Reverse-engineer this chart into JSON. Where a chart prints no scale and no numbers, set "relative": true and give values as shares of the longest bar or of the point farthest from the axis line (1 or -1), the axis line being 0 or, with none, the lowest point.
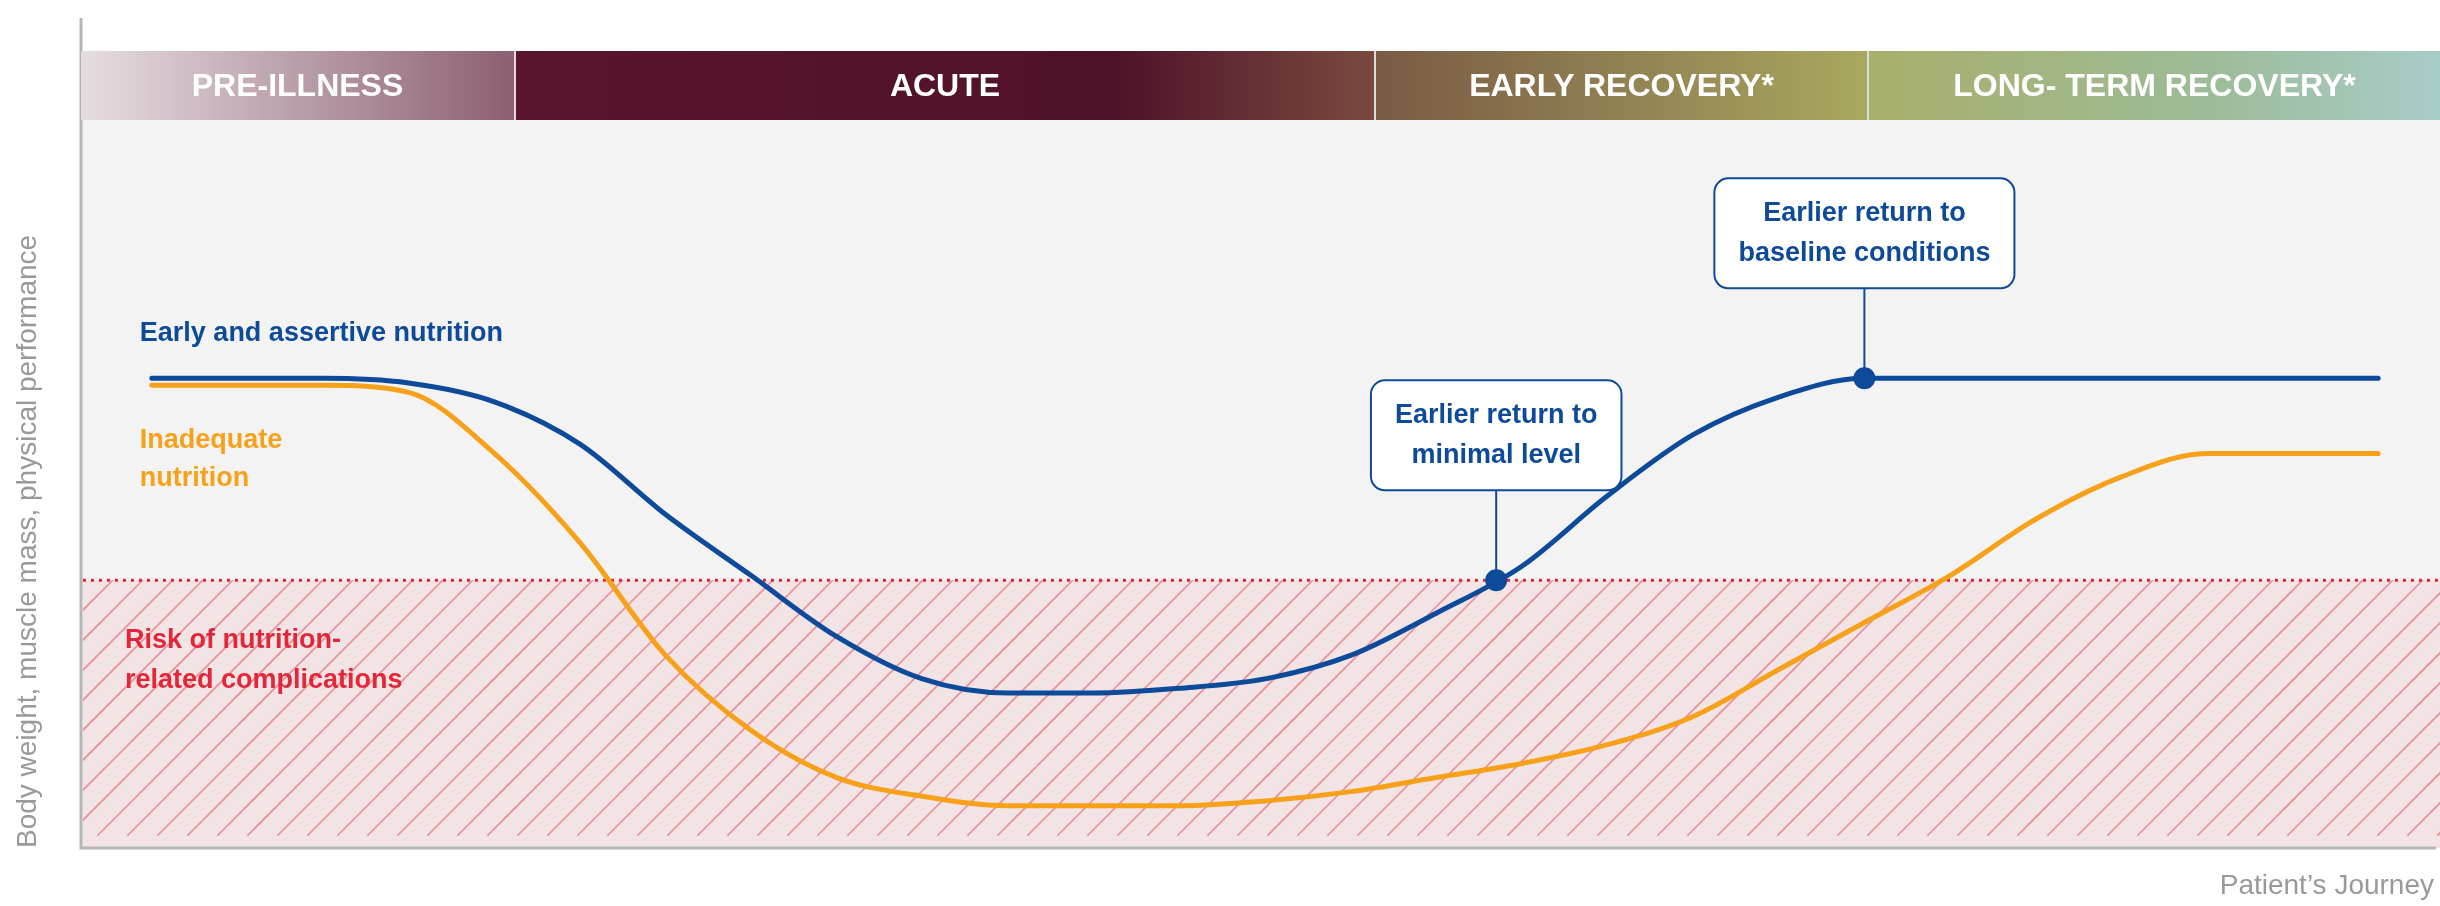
{
  "chart_data": {
    "type": "line",
    "relative": true,
    "xlabel": "Patient’s Journey",
    "ylabel": "Body weight, muscle mass, physical performance",
    "categories": [
      null,
      null,
      null,
      null,
      null,
      null,
      null,
      null,
      null,
      null,
      null,
      null,
      null,
      null,
      null,
      null,
      null,
      null,
      null,
      null,
      null,
      null,
      null,
      null,
      null,
      null,
      null
    ],
    "series": [
      {
        "name": "Early and assertive nutrition",
        "color": "#0d4a9a",
        "values": [
          1,
          1,
          1,
          0.99,
          0.95,
          0.86,
          0.71,
          0.58,
          0.45,
          0.36,
          0.33,
          0.33,
          0.34,
          0.36,
          0.41,
          0.5,
          0.6,
          0.75,
          0.88,
          0.96,
          1,
          1,
          1,
          1,
          1,
          1,
          1
        ]
      },
      {
        "name": "Inadequate nutrition",
        "color": "#f7a11a",
        "values": [
          0.985,
          0.985,
          0.985,
          0.97,
          0.84,
          0.65,
          0.41,
          0.25,
          0.15,
          0.11,
          0.09,
          0.09,
          0.09,
          0.1,
          0.12,
          0.15,
          0.18,
          0.22,
          0.28,
          0.38,
          0.48,
          0.58,
          0.7,
          0.79,
          0.84,
          0.84,
          0.84
        ]
      }
    ],
    "ref_lines": [
      {
        "axis": "y",
        "value": 0.57,
        "color": "#e3263a",
        "line_style": "dotted"
      }
    ],
    "bands": [
      {
        "axis": "y",
        "from": 0,
        "to": 0.57,
        "label": "Risk of nutrition-related complications",
        "color": "#e3263a"
      }
    ],
    "annotations": [
      "PRE-ILLNESS",
      "ACUTE",
      "EARLY RECOVERY*",
      "LONG- TERM RECOVERY*",
      {
        "text": "Earlier return to minimal level",
        "y": 0.57
      },
      {
        "text": "Earlier return to baseline conditions",
        "y": 1
      }
    ],
    "legend": false,
    "marker": "none",
    "line_style": "solid"
  }
}
